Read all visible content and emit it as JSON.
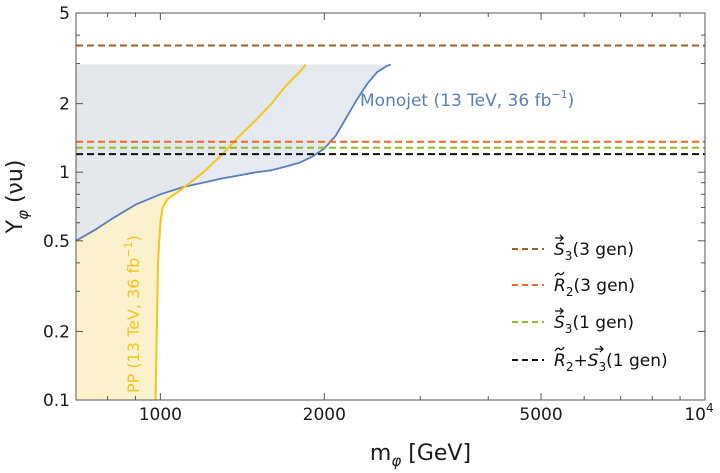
{
  "chart_data": {
    "type": "line",
    "xscale": "log",
    "yscale": "log",
    "xlim": [
      700,
      10000
    ],
    "ylim": [
      0.1,
      5
    ],
    "xlabel": {
      "main": "m",
      "sub": "φ",
      "rest": " [GeV]"
    },
    "ylabel": {
      "main": "Y",
      "sub": "φ",
      "rest": " (νu)"
    },
    "x_ticks": [
      {
        "value": 1000,
        "label": "1000"
      },
      {
        "value": 2000,
        "label": "2000"
      },
      {
        "value": 5000,
        "label": "5000"
      }
    ],
    "x_top_tick": {
      "value": 10000,
      "base": "10",
      "exp": "4"
    },
    "y_ticks": [
      {
        "value": 0.1,
        "label": "0.1"
      },
      {
        "value": 0.2,
        "label": "0.2"
      },
      {
        "value": 0.5,
        "label": "0.5"
      },
      {
        "value": 1,
        "label": "1"
      },
      {
        "value": 2,
        "label": "2"
      },
      {
        "value": 5,
        "label": "5"
      }
    ],
    "monojet": {
      "name": "Monojet",
      "label_main": "Monojet (13 TeV, 36 fb",
      "label_sup": "−1",
      "label_close": ")",
      "color": "#5b7db8",
      "fill": "#dfe5f0",
      "points": [
        [
          700,
          0.5
        ],
        [
          760,
          0.56
        ],
        [
          820,
          0.63
        ],
        [
          900,
          0.72
        ],
        [
          1000,
          0.8
        ],
        [
          1100,
          0.86
        ],
        [
          1200,
          0.9
        ],
        [
          1300,
          0.94
        ],
        [
          1400,
          0.97
        ],
        [
          1500,
          1.0
        ],
        [
          1600,
          1.02
        ],
        [
          1700,
          1.06
        ],
        [
          1800,
          1.1
        ],
        [
          1900,
          1.17
        ],
        [
          2000,
          1.27
        ],
        [
          2100,
          1.45
        ],
        [
          2200,
          1.75
        ],
        [
          2300,
          2.1
        ],
        [
          2400,
          2.45
        ],
        [
          2500,
          2.75
        ],
        [
          2600,
          2.92
        ],
        [
          2650,
          2.97
        ]
      ],
      "fill_ceiling": 2.97
    },
    "pp": {
      "name": "PP",
      "label_main": "PP (13 TeV, 36 fb",
      "label_sup": "−1",
      "label_close": ")",
      "color": "#f5c518",
      "fill": "#fbf2cd",
      "points": [
        [
          980,
          0.1
        ],
        [
          985,
          0.2
        ],
        [
          990,
          0.4
        ],
        [
          1000,
          0.6
        ],
        [
          1010,
          0.7
        ],
        [
          1030,
          0.76
        ],
        [
          1100,
          0.85
        ],
        [
          1200,
          1.0
        ],
        [
          1300,
          1.2
        ],
        [
          1400,
          1.45
        ],
        [
          1500,
          1.7
        ],
        [
          1600,
          2.0
        ],
        [
          1700,
          2.4
        ],
        [
          1800,
          2.75
        ],
        [
          1850,
          2.97
        ]
      ]
    },
    "series": [
      {
        "name": "S3 (3 gen)",
        "label_sym": "S",
        "label_sub": "3",
        "label_rest": "(3 gen)",
        "accent": "vec",
        "y": 3.6,
        "color": "#a0602a"
      },
      {
        "name": "R2 (3 gen)",
        "label_sym": "R",
        "label_sub": "2",
        "label_rest": "(3 gen)",
        "accent": "tilde",
        "y": 1.36,
        "color": "#f26522"
      },
      {
        "name": "S3 (1 gen)",
        "label_sym": "S",
        "label_sub": "3",
        "label_rest": "(1 gen)",
        "accent": "vec",
        "y": 1.28,
        "color": "#8fbc2a"
      },
      {
        "name": "R2+S3 (1 gen)",
        "label_sym": "R",
        "label_sub": "2",
        "label_plus": "+",
        "label_sym2": "S",
        "label_sub2": "3",
        "label_rest": "(1 gen)",
        "accent": "tilde",
        "accent2": "vec",
        "y": 1.2,
        "color": "#111111"
      }
    ],
    "legend": "bottom-right",
    "grid": false
  }
}
